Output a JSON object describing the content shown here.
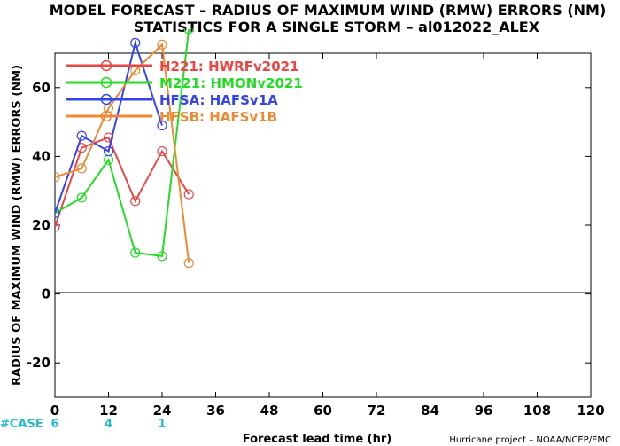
{
  "chart_data": {
    "type": "line",
    "title": "MODEL FORECAST – RADIUS OF MAXIMUM WIND (RMW) ERRORS (NM)",
    "subtitle": "STATISTICS FOR A SINGLE STORM – al012022_ALEX",
    "xlabel": "Forecast lead time (hr)",
    "ylabel": "RADIUS OF MAXIMUM WIND (RMW) ERRORS (NM)",
    "xlim": [
      0,
      120
    ],
    "ylim": [
      -30,
      70
    ],
    "xticks": [
      0,
      12,
      24,
      36,
      48,
      60,
      72,
      84,
      96,
      108,
      120
    ],
    "yticks": [
      -20,
      0,
      20,
      40,
      60
    ],
    "zero_line": true,
    "grid": false,
    "legend_position": "top-left",
    "series": [
      {
        "name": "H221: HWRFv2021",
        "color": "#ee4444",
        "x": [
          0,
          6,
          12,
          18,
          24,
          30
        ],
        "y": [
          19.5,
          42.5,
          45.5,
          27,
          41.5,
          29
        ]
      },
      {
        "name": "M221: HMONv2021",
        "color": "#22dd22",
        "x": [
          0,
          6,
          12,
          18,
          24,
          30
        ],
        "y": [
          23.5,
          28,
          39,
          12,
          11,
          77
        ]
      },
      {
        "name": "HFSA: HAFSv1A",
        "color": "#3344ee",
        "x": [
          0,
          6,
          12,
          18,
          24
        ],
        "y": [
          23.5,
          46,
          41.5,
          73,
          49
        ]
      },
      {
        "name": "HFSB: HAFSv1B",
        "color": "#ee8833",
        "x": [
          0,
          6,
          12,
          18,
          24,
          30
        ],
        "y": [
          34,
          36.5,
          54,
          65,
          72.5,
          9
        ]
      }
    ],
    "case_label": "#CASE",
    "case_counts": [
      {
        "x": 0,
        "n": "6"
      },
      {
        "x": 12,
        "n": "4"
      },
      {
        "x": 24,
        "n": "1"
      }
    ],
    "case_color": "#22bbcc"
  },
  "credit": "Hurricane project – NOAA/NCEP/EMC"
}
